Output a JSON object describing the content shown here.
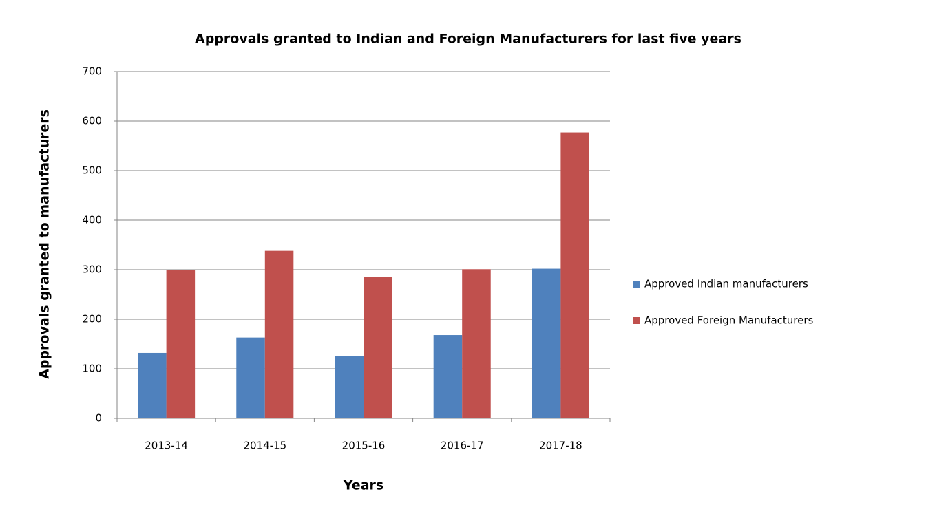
{
  "chart_data": {
    "type": "bar",
    "title": "Approvals granted to Indian and Foreign Manufacturers for last five years",
    "x_label": "Years",
    "y_label": "Approvals granted to manufacturers",
    "categories": [
      "2013-14",
      "2014-15",
      "2015-16",
      "2016-17",
      "2017-18"
    ],
    "series": [
      {
        "name": "Approved Indian manufacturers",
        "color": "#4f81bd",
        "values": [
          132,
          163,
          126,
          168,
          302
        ]
      },
      {
        "name": "Approved Foreign Manufacturers",
        "color": "#c0504d",
        "values": [
          299,
          338,
          285,
          301,
          577
        ]
      }
    ],
    "ylim": [
      0,
      700
    ],
    "yticks": [
      0,
      100,
      200,
      300,
      400,
      500,
      600,
      700
    ],
    "grid": true,
    "legend": "right"
  }
}
